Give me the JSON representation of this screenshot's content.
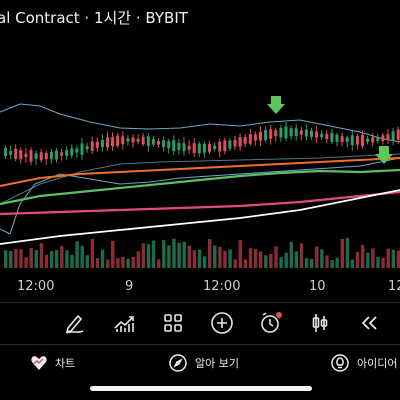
{
  "header": {
    "title": "al Contract · 1시간 · BYBIT"
  },
  "colors": {
    "background": "#000000",
    "bull": "#2e9e6e",
    "bear": "#e0505a",
    "volume_bull": "#1d6b4d",
    "volume_bear": "#8a2e36",
    "bollinger": "#6ca9c8",
    "ma_orange": "#f0702a",
    "ma_green": "#58c066",
    "ma_pink": "#e44b7c",
    "ma_white": "#ffffff",
    "marker": "#5cc85a"
  },
  "chart": {
    "x_labels": [
      "12:00",
      "9",
      "12:00",
      "10",
      "12"
    ],
    "markers": [
      "arrow-down",
      "arrow-down"
    ]
  },
  "toolbar": {
    "items": [
      {
        "icon": "draw-pen-icon"
      },
      {
        "icon": "indicators-icon"
      },
      {
        "icon": "layout-grid-icon"
      },
      {
        "icon": "add-circle-icon"
      },
      {
        "icon": "alarm-icon"
      },
      {
        "icon": "candlestick-icon"
      },
      {
        "icon": "rewind-icon"
      }
    ]
  },
  "bottom_tabs": [
    {
      "label": "차트",
      "icon": "heart-chart-icon"
    },
    {
      "label": "알아 보기",
      "icon": "compass-icon"
    },
    {
      "label": "아이디어",
      "icon": "lightbulb-icon"
    }
  ]
}
